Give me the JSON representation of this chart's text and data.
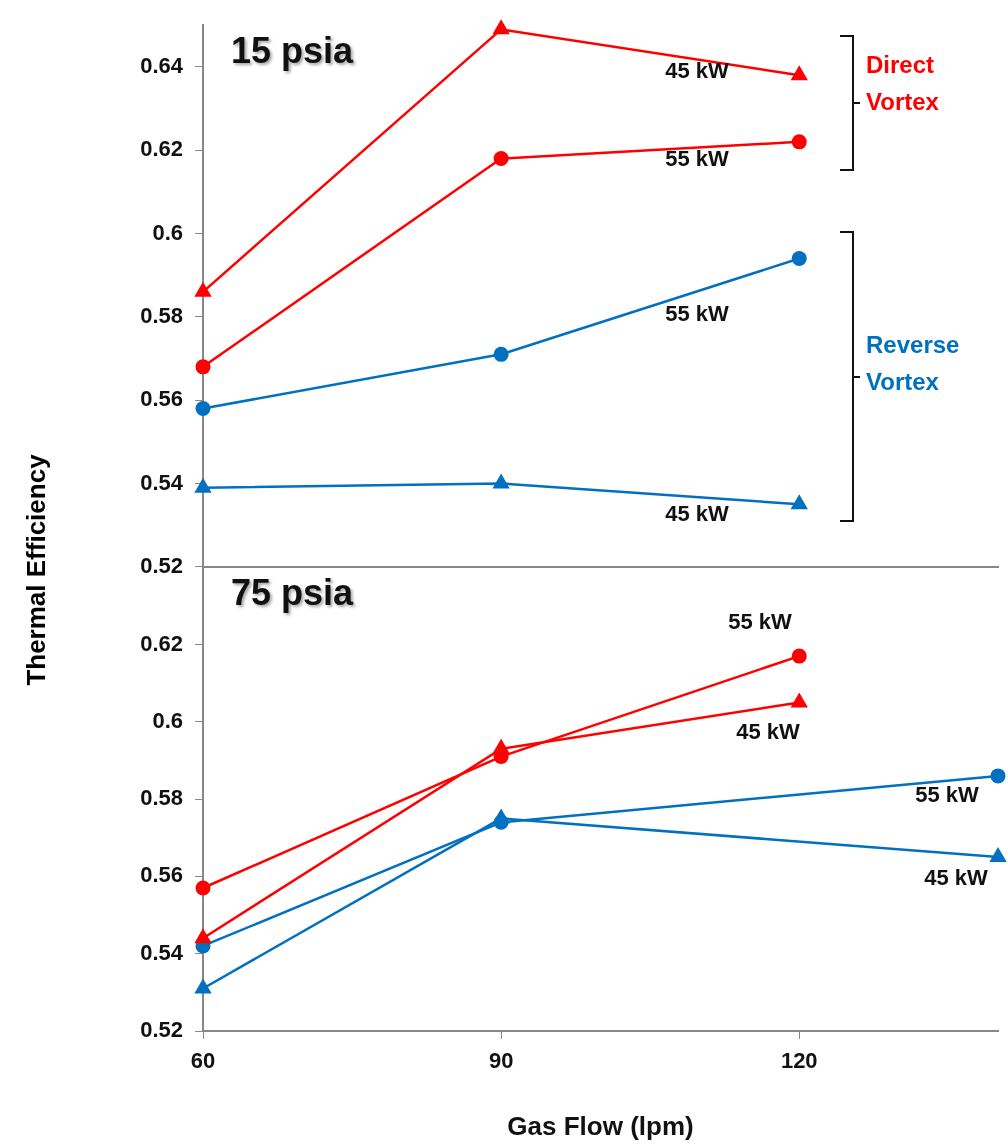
{
  "chart_data": [
    {
      "type": "line",
      "title": "15 psia",
      "ylabel": "Thermal Efficiency",
      "x": [
        60,
        90,
        120
      ],
      "xlim": [
        60,
        140
      ],
      "ylim": [
        0.52,
        0.65
      ],
      "yticks": [
        0.52,
        0.54,
        0.56,
        0.58,
        0.6,
        0.62,
        0.64
      ],
      "tick_labels": "y",
      "legend": false,
      "series": [
        {
          "color": "#ff0000",
          "marker": "triangle",
          "values": [
            0.586,
            0.649,
            0.638
          ]
        },
        {
          "color": "#ff0000",
          "marker": "circle",
          "values": [
            0.568,
            0.618,
            0.622
          ]
        },
        {
          "color": "#0070c0",
          "marker": "circle",
          "values": [
            0.558,
            0.571,
            0.594
          ]
        },
        {
          "color": "#0070c0",
          "marker": "triangle",
          "values": [
            0.539,
            0.54,
            0.535
          ]
        }
      ],
      "annotations": [
        "45 kW",
        "55 kW",
        "55 kW",
        "45 kW",
        "Direct Vortex",
        "Reverse Vortex"
      ]
    },
    {
      "type": "line",
      "title": "75 psia",
      "xlabel": "Gas Flow (lpm)",
      "x": [
        60,
        90,
        120
      ],
      "xlim": [
        60,
        140
      ],
      "xticks": [
        60,
        90,
        120
      ],
      "ylim": [
        0.52,
        0.64
      ],
      "yticks": [
        0.52,
        0.54,
        0.56,
        0.58,
        0.6,
        0.62
      ],
      "legend": false,
      "series": [
        {
          "color": "#ff0000",
          "marker": "circle",
          "values": [
            0.557,
            0.591,
            0.617
          ]
        },
        {
          "color": "#ff0000",
          "marker": "triangle",
          "values": [
            0.544,
            0.593,
            0.605
          ]
        },
        {
          "color": "#0070c0",
          "marker": "circle",
          "x": [
            60,
            90,
            140
          ],
          "values": [
            0.542,
            0.574,
            0.586
          ]
        },
        {
          "color": "#0070c0",
          "marker": "triangle",
          "x": [
            60,
            90,
            140
          ],
          "values": [
            0.531,
            0.575,
            0.565
          ]
        }
      ],
      "annotations": [
        "55 kW",
        "45 kW",
        "55 kW",
        "45 kW"
      ]
    }
  ]
}
